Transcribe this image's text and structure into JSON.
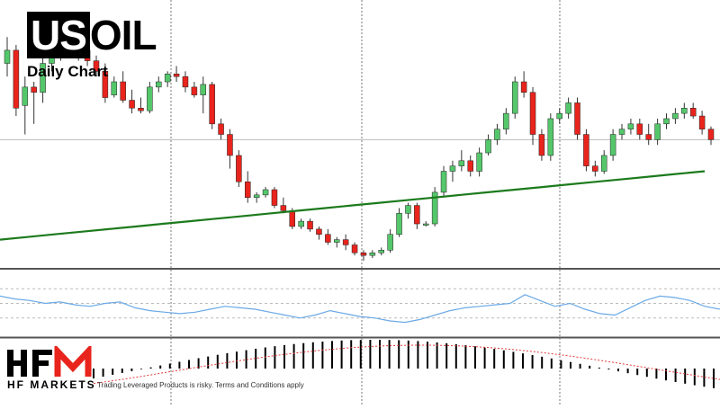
{
  "title": {
    "prefix": "US",
    "suffix": "OIL",
    "subtitle": "Daily Chart"
  },
  "brand": {
    "name": "HF MARKETS",
    "disclaimer": "Trading Leveraged Products is risky. Terms and Conditions apply"
  },
  "colors": {
    "bull": "#55c76b",
    "bear": "#e8241d",
    "ma": "#1c7a1c",
    "rsi": "#6aa9e6",
    "signal": "#e33b3b"
  },
  "chart_data": {
    "type": "candlestick",
    "panels": [
      "price",
      "rsi",
      "macd"
    ],
    "candles": [
      [
        65,
        75,
        60,
        70
      ],
      [
        70,
        72,
        45,
        48
      ],
      [
        49,
        60,
        38,
        56
      ],
      [
        56,
        58,
        42,
        54
      ],
      [
        54,
        70,
        50,
        65
      ],
      [
        65,
        72,
        62,
        68
      ],
      [
        68,
        80,
        66,
        78
      ],
      [
        78,
        82,
        72,
        74
      ],
      [
        74,
        78,
        66,
        70
      ],
      [
        70,
        72,
        64,
        66
      ],
      [
        66,
        68,
        60,
        62
      ],
      [
        62,
        65,
        50,
        52
      ],
      [
        53,
        60,
        52,
        58
      ],
      [
        58,
        62,
        50,
        51
      ],
      [
        51,
        55,
        46,
        48
      ],
      [
        48,
        52,
        46,
        47
      ],
      [
        47,
        58,
        46,
        56
      ],
      [
        56,
        60,
        54,
        58
      ],
      [
        58,
        62,
        56,
        61
      ],
      [
        61,
        64,
        58,
        60
      ],
      [
        60,
        62,
        54,
        56
      ],
      [
        56,
        58,
        52,
        53
      ],
      [
        53,
        60,
        46,
        57
      ],
      [
        57,
        58,
        40,
        42
      ],
      [
        42,
        44,
        36,
        38
      ],
      [
        38,
        40,
        25,
        30
      ],
      [
        30,
        32,
        18,
        20
      ],
      [
        20,
        24,
        12,
        14
      ],
      [
        14,
        16,
        12,
        15
      ],
      [
        15,
        18,
        14,
        17
      ],
      [
        17,
        18,
        10,
        11
      ],
      [
        11,
        14,
        8,
        9
      ],
      [
        9,
        10,
        2,
        3
      ],
      [
        3,
        6,
        2,
        5
      ],
      [
        5,
        6,
        1,
        2
      ],
      [
        2,
        3,
        -2,
        0
      ],
      [
        0,
        2,
        -4,
        -3
      ],
      [
        -3,
        -1,
        -5,
        -2
      ],
      [
        -2,
        0,
        -6,
        -4
      ],
      [
        -4,
        -3,
        -8,
        -7
      ],
      [
        -7,
        -6,
        -10,
        -8
      ],
      [
        -8,
        -6,
        -9,
        -7
      ],
      [
        -7,
        -5,
        -8,
        -6
      ],
      [
        -6,
        2,
        -7,
        0
      ],
      [
        0,
        10,
        -1,
        8
      ],
      [
        8,
        12,
        6,
        11
      ],
      [
        11,
        12,
        2,
        4
      ],
      [
        4,
        5,
        3,
        4
      ],
      [
        4,
        18,
        3,
        16
      ],
      [
        16,
        26,
        14,
        24
      ],
      [
        24,
        28,
        20,
        26
      ],
      [
        26,
        32,
        24,
        28
      ],
      [
        28,
        30,
        22,
        24
      ],
      [
        24,
        33,
        22,
        31
      ],
      [
        31,
        38,
        30,
        36
      ],
      [
        36,
        42,
        34,
        40
      ],
      [
        40,
        48,
        38,
        46
      ],
      [
        46,
        60,
        44,
        58
      ],
      [
        58,
        62,
        52,
        54
      ],
      [
        54,
        56,
        34,
        38
      ],
      [
        38,
        40,
        28,
        30
      ],
      [
        30,
        46,
        28,
        44
      ],
      [
        44,
        48,
        42,
        46
      ],
      [
        46,
        52,
        44,
        50
      ],
      [
        50,
        52,
        36,
        38
      ],
      [
        38,
        40,
        24,
        26
      ],
      [
        26,
        28,
        22,
        24
      ],
      [
        24,
        32,
        23,
        30
      ],
      [
        30,
        40,
        28,
        38
      ],
      [
        38,
        42,
        36,
        40
      ],
      [
        40,
        44,
        38,
        42
      ],
      [
        42,
        44,
        36,
        38
      ],
      [
        38,
        42,
        34,
        36
      ],
      [
        36,
        44,
        34,
        42
      ],
      [
        42,
        46,
        40,
        44
      ],
      [
        44,
        48,
        42,
        46
      ],
      [
        46,
        50,
        44,
        48
      ],
      [
        48,
        50,
        44,
        45
      ],
      [
        45,
        47,
        38,
        40
      ],
      [
        40,
        41,
        34,
        36
      ]
    ],
    "ma": [
      -2,
      -1,
      0,
      1,
      2,
      3,
      4,
      5,
      6,
      7,
      8,
      9,
      10,
      11,
      12,
      13,
      14,
      15,
      16,
      17,
      18,
      19,
      20,
      21,
      22,
      23,
      24
    ],
    "rsi": [
      55,
      53,
      52,
      50,
      51,
      49,
      48,
      50,
      51,
      47,
      45,
      44,
      43,
      44,
      46,
      48,
      47,
      46,
      44,
      42,
      40,
      42,
      45,
      43,
      41,
      40,
      38,
      37,
      39,
      42,
      45,
      47,
      48,
      49,
      50,
      56,
      52,
      48,
      50,
      46,
      43,
      42,
      47,
      52,
      55,
      54,
      52,
      48,
      46
    ]
  }
}
